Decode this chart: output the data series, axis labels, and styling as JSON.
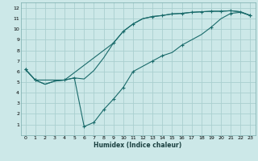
{
  "xlabel": "Humidex (Indice chaleur)",
  "bg_color": "#cce8e8",
  "grid_color": "#aacfcf",
  "line_color": "#1a6b6b",
  "xlim": [
    -0.5,
    23.5
  ],
  "ylim": [
    0,
    12.5
  ],
  "xtick_labels": [
    "0",
    "1",
    "2",
    "3",
    "4",
    "5",
    "6",
    "7",
    "8",
    "9",
    "10",
    "11",
    "12",
    "13",
    "14",
    "15",
    "16",
    "17",
    "18",
    "19",
    "20",
    "21",
    "22",
    "23"
  ],
  "ytick_labels": [
    "1",
    "2",
    "3",
    "4",
    "5",
    "6",
    "7",
    "8",
    "9",
    "10",
    "11",
    "12"
  ],
  "series1_x": [
    0,
    1,
    2,
    3,
    4,
    5,
    6,
    7,
    8,
    9,
    10,
    11,
    12,
    13,
    14,
    15,
    16,
    17,
    18,
    19,
    20,
    21,
    22,
    23
  ],
  "series1_y": [
    6.2,
    5.2,
    4.8,
    5.1,
    5.2,
    5.4,
    5.3,
    6.1,
    7.3,
    8.7,
    9.8,
    10.5,
    11.0,
    11.2,
    11.3,
    11.45,
    11.5,
    11.6,
    11.65,
    11.7,
    11.7,
    11.75,
    11.65,
    11.3
  ],
  "series2_x": [
    0,
    1,
    2,
    3,
    4,
    5,
    6,
    7,
    8,
    9,
    10,
    11,
    12,
    13,
    14,
    15,
    16,
    17,
    18,
    19,
    20,
    21,
    22,
    23
  ],
  "series2_y": [
    6.2,
    5.2,
    4.8,
    5.1,
    5.2,
    5.4,
    0.8,
    1.2,
    2.4,
    3.4,
    4.5,
    6.0,
    6.5,
    7.0,
    7.5,
    7.8,
    8.5,
    9.0,
    9.5,
    10.2,
    11.0,
    11.5,
    11.6,
    11.3
  ],
  "series2_markers_x": [
    0,
    1,
    5,
    6,
    7,
    8,
    9,
    10,
    11,
    13,
    14,
    16,
    19,
    21,
    23
  ],
  "series2_markers_y": [
    6.2,
    5.2,
    5.4,
    0.8,
    1.2,
    2.4,
    3.4,
    4.5,
    6.0,
    7.0,
    7.5,
    8.5,
    10.2,
    11.5,
    11.3
  ],
  "series3_x": [
    0,
    1,
    4,
    9,
    10,
    11,
    12,
    13,
    14,
    15,
    16,
    17,
    18,
    19,
    20,
    21,
    22,
    23
  ],
  "series3_y": [
    6.2,
    5.2,
    5.2,
    8.7,
    9.8,
    10.5,
    11.0,
    11.2,
    11.3,
    11.45,
    11.5,
    11.6,
    11.65,
    11.7,
    11.7,
    11.75,
    11.65,
    11.3
  ],
  "series3_markers_x": [
    0,
    1,
    4,
    9,
    10,
    11,
    13,
    14,
    15,
    16,
    17,
    18,
    19,
    20,
    21,
    22,
    23
  ],
  "series3_markers_y": [
    6.2,
    5.2,
    5.2,
    8.7,
    9.8,
    10.5,
    11.2,
    11.3,
    11.45,
    11.5,
    11.6,
    11.65,
    11.7,
    11.7,
    11.75,
    11.65,
    11.3
  ]
}
